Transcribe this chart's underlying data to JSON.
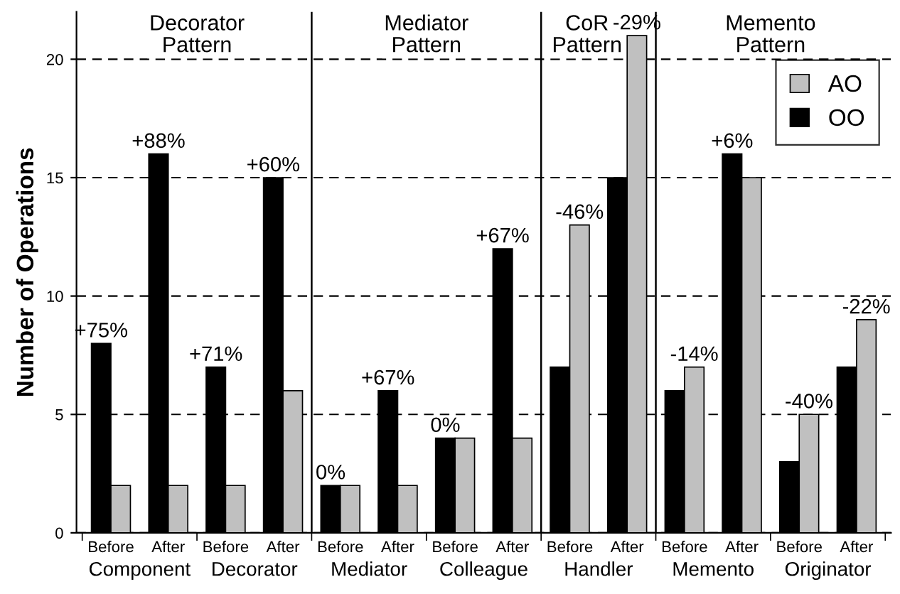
{
  "chart_data": {
    "type": "bar",
    "ylabel": "Number of Operations",
    "categories": [
      "Before",
      "After",
      "Before",
      "After",
      "Before",
      "After",
      "Before",
      "After",
      "Before",
      "After",
      "Before",
      "After",
      "Before",
      "After"
    ],
    "series": [
      {
        "name": "OO",
        "color": "#000000",
        "values": [
          8,
          16,
          7,
          15,
          2,
          6,
          4,
          12,
          7,
          15,
          6,
          16,
          3,
          7
        ]
      },
      {
        "name": "AO",
        "color": "#c0c0c0",
        "values": [
          2,
          2,
          2,
          6,
          2,
          2,
          4,
          4,
          13,
          21,
          7,
          15,
          5,
          9
        ]
      }
    ],
    "ylim": [
      0,
      22
    ],
    "yticks": [
      0,
      5,
      10,
      15,
      20
    ],
    "grid": "y",
    "legend": "top right",
    "annotations": [
      "Decorator Pattern",
      "Mediator Pattern",
      "CoR Pattern",
      "Memento Pattern",
      "Component",
      "Decorator",
      "Mediator",
      "Colleague",
      "Handler",
      "Memento",
      "Originator",
      "+75%",
      "+88%",
      "+71%",
      "+60%",
      "0%",
      "+67%",
      "0%",
      "+67%",
      "-46%",
      "-29%",
      "-14%",
      "+6%",
      "-40%",
      "-22%"
    ]
  }
}
